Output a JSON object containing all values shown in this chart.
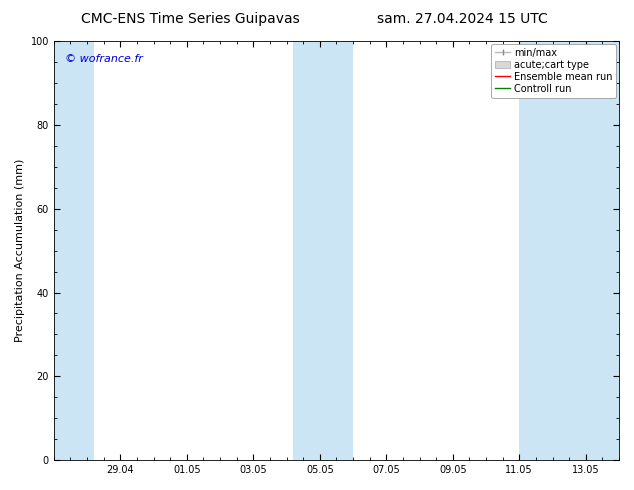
{
  "title_left": "CMC-ENS Time Series Guipavas",
  "title_right": "sam. 27.04.2024 15 UTC",
  "ylabel": "Precipitation Accumulation (mm)",
  "watermark": "© wofrance.fr",
  "ylim": [
    0,
    100
  ],
  "yticks": [
    0,
    20,
    40,
    60,
    80,
    100
  ],
  "xtick_labels": [
    "29.04",
    "01.05",
    "03.05",
    "05.05",
    "07.05",
    "09.05",
    "11.05",
    "13.05"
  ],
  "xtick_positions": [
    2,
    4,
    6,
    8,
    10,
    12,
    14,
    16
  ],
  "xlim": [
    0,
    17
  ],
  "shaded_bands": [
    {
      "x_start": 0.0,
      "x_end": 1.2,
      "color": "#cce5f5",
      "alpha": 1.0
    },
    {
      "x_start": 7.2,
      "x_end": 9.0,
      "color": "#cce5f5",
      "alpha": 1.0
    },
    {
      "x_start": 14.0,
      "x_end": 17.0,
      "color": "#cce5f5",
      "alpha": 1.0
    }
  ],
  "legend_entries": [
    {
      "label": "min/max",
      "color": "#aaaaaa",
      "type": "errorbar"
    },
    {
      "label": "acute;cart type",
      "color": "#cccccc",
      "type": "bar"
    },
    {
      "label": "Ensemble mean run",
      "color": "#ff0000",
      "type": "line"
    },
    {
      "label": "Controll run",
      "color": "#008000",
      "type": "line"
    }
  ],
  "background_color": "#ffffff",
  "plot_bg_color": "#ffffff",
  "tick_fontsize": 7,
  "title_fontsize": 10,
  "ylabel_fontsize": 8,
  "legend_fontsize": 7,
  "watermark_fontsize": 8
}
